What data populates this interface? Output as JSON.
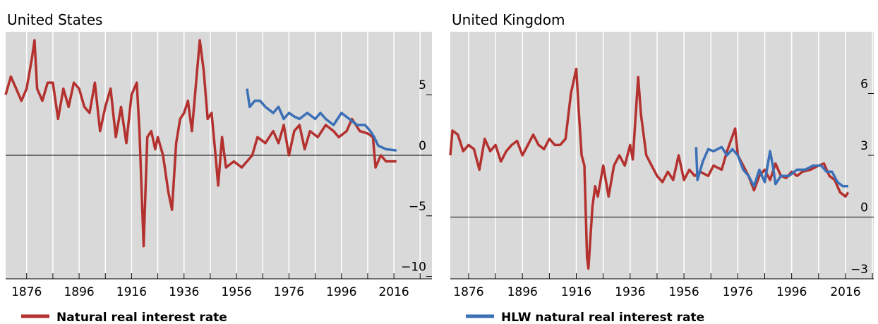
{
  "chart_data": [
    {
      "type": "line",
      "title": "United States",
      "xlim": [
        1868,
        2030.5
      ],
      "ylim": [
        -10.2,
        10.2
      ],
      "xticks": [
        1876,
        1896,
        1916,
        1936,
        1956,
        1976,
        1996,
        2016
      ],
      "xminor": [
        1886,
        1906,
        1926,
        1946,
        1966,
        1986,
        2006,
        2026
      ],
      "yticks": [
        {
          "value": -10,
          "label": "−10"
        },
        {
          "value": -5,
          "label": "−5"
        },
        0,
        5
      ],
      "grid": true,
      "series": [
        {
          "name": "Natural real interest rate",
          "color": "#b3312e",
          "x": [
            1868,
            1870,
            1872,
            1874,
            1876,
            1878,
            1879,
            1880,
            1882,
            1884,
            1886,
            1888,
            1890,
            1892,
            1894,
            1896,
            1898,
            1900,
            1902,
            1904,
            1906,
            1908,
            1910,
            1912,
            1914,
            1916,
            1918,
            1919,
            1920.6,
            1922,
            1923.5,
            1925,
            1926,
            1928,
            1930,
            1931.4,
            1933,
            1934.5,
            1936,
            1937.5,
            1939,
            1941,
            1942,
            1943.5,
            1945,
            1946.5,
            1948,
            1949,
            1950.5,
            1952,
            1955,
            1958,
            1960,
            1962,
            1964,
            1967,
            1970,
            1972,
            1974,
            1976,
            1978,
            1980,
            1982,
            1984,
            1987,
            1990,
            1993,
            1995,
            1998,
            2000,
            2003,
            2006,
            2008,
            2009,
            2011,
            2013,
            2017
          ],
          "values": [
            5,
            6.5,
            5.5,
            4.5,
            5.5,
            8,
            9.5,
            5.5,
            4.5,
            6,
            6,
            3,
            5.5,
            4,
            6,
            5.5,
            4,
            3.5,
            6,
            2,
            4,
            5.5,
            1.5,
            4,
            1,
            5,
            6,
            2,
            -7.5,
            1.5,
            2,
            0.5,
            1.5,
            0,
            -3,
            -4.5,
            1,
            3,
            3.5,
            4.5,
            2,
            7,
            9.5,
            7,
            3,
            3.5,
            0,
            -2.5,
            1.5,
            -1,
            -0.5,
            -1,
            -0.5,
            0,
            1.5,
            1,
            2,
            1,
            2.5,
            0,
            2,
            2.5,
            0.5,
            2,
            1.5,
            2.5,
            2,
            1.5,
            2,
            3,
            2,
            1.8,
            1.5,
            -1,
            0,
            -0.5,
            -0.5
          ]
        },
        {
          "color": "#3b6fb6",
          "x": [
            1960,
            1961,
            1963,
            1965,
            1967,
            1970,
            1972,
            1974,
            1976,
            1978,
            1980,
            1983,
            1986,
            1988,
            1990,
            1993,
            1996,
            1999,
            2002,
            2005,
            2007,
            2008.5,
            2010,
            2013,
            2017
          ],
          "values": [
            5.5,
            4,
            4.5,
            4.5,
            4,
            3.5,
            4,
            3,
            3.5,
            3.2,
            3,
            3.5,
            3,
            3.5,
            3,
            2.5,
            3.5,
            3,
            2.5,
            2.5,
            2,
            1.5,
            0.8,
            0.5,
            0.4
          ]
        }
      ]
    },
    {
      "type": "line",
      "title": "United Kingdom",
      "xlim": [
        1869.2,
        2026.5
      ],
      "ylim": [
        -3,
        9
      ],
      "xticks": [
        1876,
        1896,
        1916,
        1936,
        1956,
        1976,
        1996,
        2016
      ],
      "xminor": [
        1886,
        1906,
        1926,
        1946,
        1966,
        1986,
        2006,
        2026
      ],
      "yticks": [
        {
          "value": -3,
          "label": "−3"
        },
        0,
        3,
        6
      ],
      "grid": true,
      "series": [
        {
          "color": "#b3312e",
          "x": [
            1869.2,
            1870,
            1872,
            1874,
            1876,
            1878,
            1880,
            1882,
            1884,
            1886,
            1888,
            1890,
            1892,
            1894,
            1896,
            1898,
            1900,
            1902,
            1904,
            1906,
            1908,
            1910,
            1912,
            1914,
            1916,
            1917,
            1918,
            1919,
            1920,
            1920.5,
            1922,
            1923,
            1924,
            1926,
            1928,
            1930,
            1932,
            1934,
            1936,
            1937,
            1939,
            1940,
            1942,
            1944,
            1946,
            1948,
            1950,
            1952,
            1954,
            1956,
            1958,
            1960,
            1962,
            1965,
            1967,
            1970,
            1972,
            1975,
            1976,
            1978,
            1980,
            1982,
            1984,
            1986,
            1988,
            1990,
            1992,
            1994,
            1996,
            1998,
            2000,
            2003,
            2006,
            2008,
            2010,
            2012,
            2014,
            2016,
            2017
          ],
          "values": [
            3,
            4.2,
            4,
            3.2,
            3.5,
            3.3,
            2.3,
            3.8,
            3.2,
            3.5,
            2.7,
            3.2,
            3.5,
            3.7,
            3,
            3.5,
            4,
            3.5,
            3.3,
            3.8,
            3.5,
            3.5,
            3.8,
            6,
            7.2,
            5,
            3,
            2.5,
            -2,
            -2.5,
            0.5,
            1.5,
            1,
            2.5,
            1,
            2.5,
            3,
            2.5,
            3.5,
            2.8,
            6.8,
            5,
            3,
            2.5,
            2,
            1.7,
            2.2,
            1.8,
            3,
            1.8,
            2.3,
            2,
            2.2,
            2,
            2.5,
            2.3,
            3.2,
            4.3,
            3,
            2.5,
            2,
            1.3,
            2,
            2.3,
            1.8,
            2.6,
            2,
            1.9,
            2.2,
            2,
            2.2,
            2.3,
            2.5,
            2.6,
            2,
            1.8,
            1.2,
            1,
            1.2
          ]
        },
        {
          "name": "HLW natural real interest rate",
          "color": "#3b6fb6",
          "x": [
            1960.5,
            1961,
            1963,
            1965,
            1967,
            1970,
            1972,
            1974,
            1976,
            1978,
            1980,
            1982,
            1984,
            1986,
            1988,
            1989,
            1990,
            1992,
            1995,
            1998,
            2001,
            2004,
            2007,
            2009,
            2011,
            2013,
            2015,
            2017
          ],
          "values": [
            3.4,
            1.8,
            2.7,
            3.3,
            3.2,
            3.4,
            3,
            3.3,
            3,
            2.3,
            2,
            1.5,
            2.3,
            1.7,
            3.2,
            2.5,
            1.6,
            2,
            2,
            2.3,
            2.3,
            2.5,
            2.5,
            2.2,
            2.2,
            1.7,
            1.5,
            1.5
          ]
        }
      ]
    }
  ]
}
